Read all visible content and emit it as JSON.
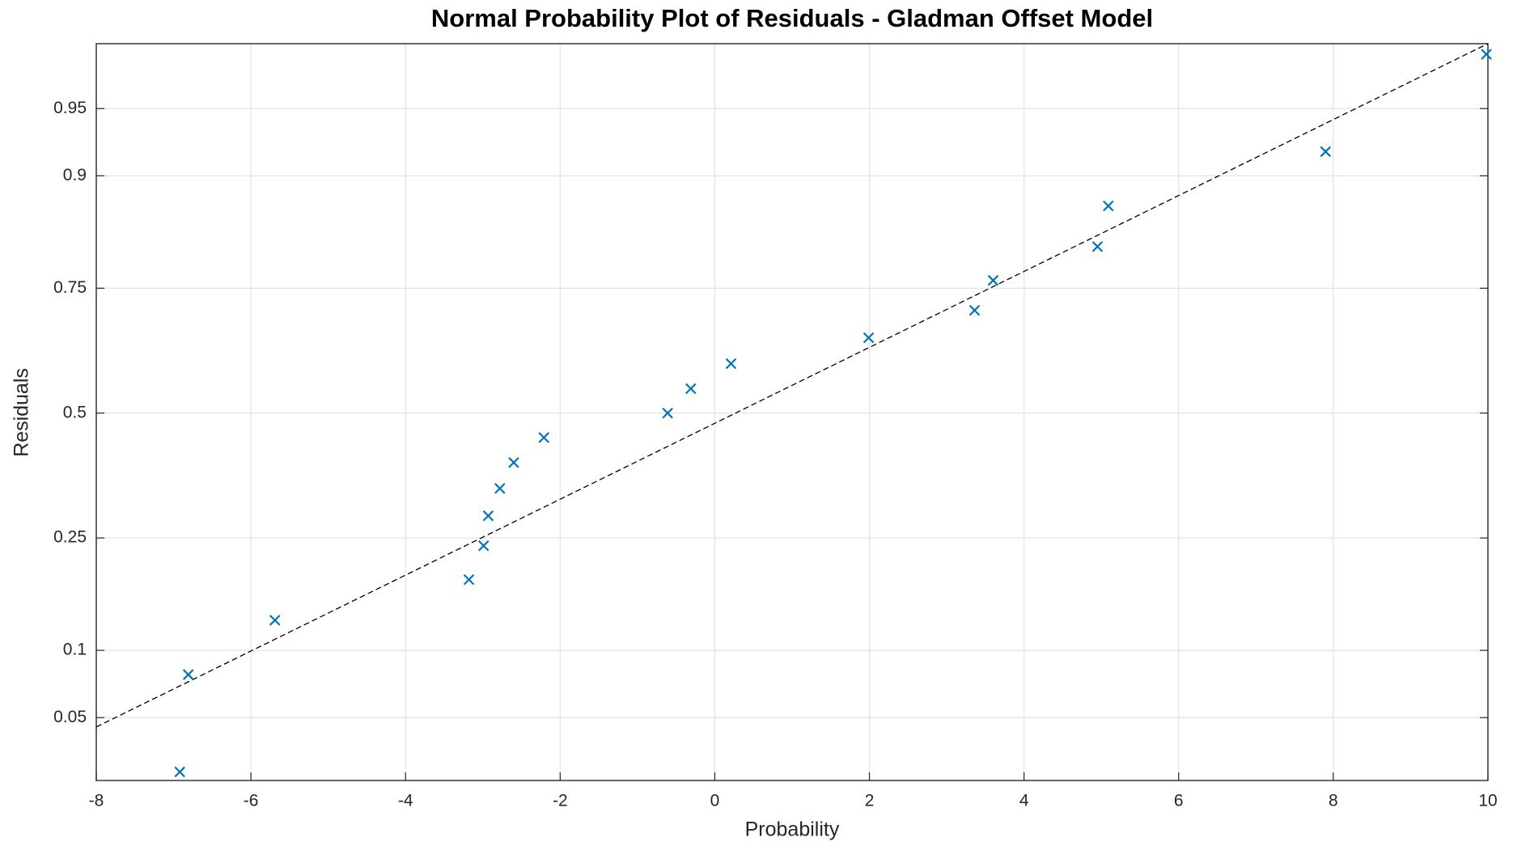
{
  "chart_data": {
    "type": "scatter",
    "yscale": "normal-probability",
    "title": "Normal Probability Plot of Residuals - Gladman Offset Model",
    "x_label": "Probability",
    "y_label": "Residuals",
    "x": [
      -6.92,
      -6.81,
      -5.69,
      -3.18,
      -2.99,
      -2.93,
      -2.78,
      -2.6,
      -2.21,
      -0.61,
      -0.31,
      0.21,
      1.99,
      3.36,
      3.6,
      4.95,
      5.09,
      7.9,
      9.98
    ],
    "values": [
      0.0263,
      0.0789,
      0.1316,
      0.1842,
      0.2368,
      0.2895,
      0.3421,
      0.3947,
      0.4474,
      0.5,
      0.5526,
      0.6053,
      0.6579,
      0.7105,
      0.7632,
      0.8158,
      0.8684,
      0.9211,
      0.9737
    ],
    "color": "#0072bd",
    "marker": "x",
    "reference_line": {
      "x": [
        -8,
        10
      ],
      "values": [
        0.045,
        0.977
      ],
      "color": "#000000",
      "style": "dashed"
    },
    "xlim": [
      -8,
      10
    ],
    "xticks": [
      -8,
      -6,
      -4,
      -2,
      0,
      2,
      4,
      6,
      8,
      10
    ],
    "ylim": [
      0.0236,
      0.977
    ],
    "yticks": [
      0.05,
      0.1,
      0.25,
      0.5,
      0.75,
      0.9,
      0.95
    ],
    "grid": true
  }
}
